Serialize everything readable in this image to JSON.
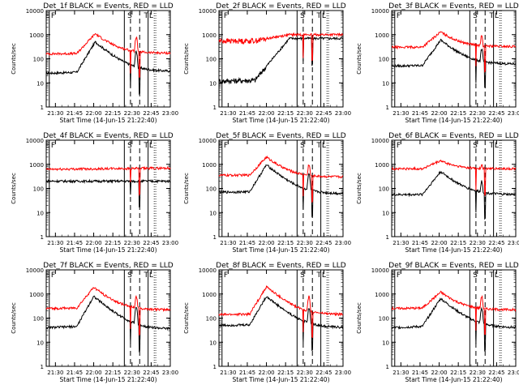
{
  "chart_data": [
    {
      "type": "line",
      "title": "Det_1f BLACK = Events, RED = LLD",
      "xlabel": "Start Time (14-Jun-15 21:22:40)",
      "ylabel": "Counts/sec",
      "ylim": [
        1,
        10000
      ],
      "yscale": "log",
      "xlim": [
        21.38,
        23.0
      ],
      "x_ticks": [
        "21:30",
        "21:45",
        "22:00",
        "22:15",
        "22:30",
        "22:45",
        "23:00"
      ],
      "y_ticks": [
        "1",
        "10",
        "100",
        "1000",
        "10000"
      ],
      "markers": {
        "labels": [
          "E",
          "F",
          "S",
          "T",
          "L"
        ],
        "solid": [
          21.42,
          22.4,
          22.71
        ],
        "dashed": [
          22.48,
          22.6
        ],
        "dotted": [
          22.79,
          22.81
        ]
      },
      "series": [
        {
          "name": "Events",
          "color": "#000000",
          "kind": "flare",
          "params": {
            "pre": [
              25,
              35
            ],
            "peak_t": 22.02,
            "peak": 500,
            "post": 30,
            "spike": 200
          }
        },
        {
          "name": "LLD",
          "color": "#ff0000",
          "kind": "flare",
          "params": {
            "pre": [
              160,
              180
            ],
            "peak_t": 22.02,
            "peak": 1100,
            "post": 170,
            "spike": 800
          }
        }
      ]
    },
    {
      "type": "line",
      "title": "Det_2f BLACK = Events, RED = LLD",
      "xlabel": "Start Time (14-Jun-15 21:22:40)",
      "ylabel": "Counts/sec",
      "ylim": [
        1,
        10000
      ],
      "yscale": "log",
      "xlim": [
        21.38,
        23.0
      ],
      "x_ticks": [
        "21:30",
        "21:45",
        "22:00",
        "22:15",
        "22:30",
        "22:45",
        "23:00"
      ],
      "y_ticks": [
        "1",
        "10",
        "100",
        "1000",
        "10000"
      ],
      "markers": {
        "labels": [
          "E",
          "F",
          "S",
          "T",
          "L"
        ],
        "solid": [
          21.42,
          22.4,
          22.71
        ],
        "dashed": [
          22.48,
          22.6
        ],
        "dotted": [
          22.79,
          22.81
        ]
      },
      "series": [
        {
          "name": "Events",
          "color": "#000000",
          "kind": "rise",
          "params": {
            "pre": [
              12,
              15
            ],
            "peak_t": 22.3,
            "peak": 700,
            "post": 20,
            "spike": 300
          }
        },
        {
          "name": "LLD",
          "color": "#ff0000",
          "kind": "rise",
          "params": {
            "pre": [
              550,
              600
            ],
            "peak_t": 22.3,
            "peak": 1000,
            "post": 300,
            "spike": 900
          }
        }
      ]
    },
    {
      "type": "line",
      "title": "Det_3f BLACK = Events, RED = LLD",
      "xlabel": "Start Time (14-Jun-15 21:22:40)",
      "ylabel": "Counts/sec",
      "ylim": [
        1,
        10000
      ],
      "yscale": "log",
      "xlim": [
        21.38,
        23.0
      ],
      "x_ticks": [
        "21:30",
        "21:45",
        "22:00",
        "22:15",
        "22:30",
        "22:45",
        "23:00"
      ],
      "y_ticks": [
        "1",
        "10",
        "100",
        "1000",
        "10000"
      ],
      "markers": {
        "labels": [
          "E",
          "F",
          "S",
          "T",
          "L"
        ],
        "solid": [
          21.42,
          22.4,
          22.71
        ],
        "dashed": [
          22.48,
          22.6
        ],
        "dotted": [
          22.79,
          22.81
        ]
      },
      "series": [
        {
          "name": "Events",
          "color": "#000000",
          "kind": "flare",
          "params": {
            "pre": [
              50,
              60
            ],
            "peak_t": 22.02,
            "peak": 600,
            "post": 60,
            "spike": 250
          }
        },
        {
          "name": "LLD",
          "color": "#ff0000",
          "kind": "flare",
          "params": {
            "pre": [
              300,
              320
            ],
            "peak_t": 22.02,
            "peak": 1300,
            "post": 320,
            "spike": 900
          }
        }
      ]
    },
    {
      "type": "line",
      "title": "Det_4f BLACK = Events, RED = LLD",
      "xlabel": "Start Time (14-Jun-15 21:22:40)",
      "ylabel": "Counts/sec",
      "ylim": [
        1,
        10000
      ],
      "yscale": "log",
      "xlim": [
        21.38,
        23.0
      ],
      "x_ticks": [
        "21:30",
        "21:45",
        "22:00",
        "22:15",
        "22:30",
        "22:45",
        "23:00"
      ],
      "y_ticks": [
        "1",
        "10",
        "100",
        "1000",
        "10000"
      ],
      "markers": {
        "labels": [
          "E",
          "F",
          "S",
          "T",
          "L"
        ],
        "solid": [
          21.42,
          22.4,
          22.71
        ],
        "dashed": [
          22.48,
          22.6
        ],
        "dotted": [
          22.79,
          22.81
        ]
      },
      "series": [
        {
          "name": "Events",
          "color": "#000000",
          "kind": "flat",
          "params": {
            "pre": [
              200,
              200
            ],
            "peak_t": 22.02,
            "peak": 200,
            "post": 200,
            "spike": 200
          }
        },
        {
          "name": "LLD",
          "color": "#ff0000",
          "kind": "flat",
          "params": {
            "pre": [
              620,
              700
            ],
            "peak_t": 22.02,
            "peak": 720,
            "post": 650,
            "spike": 700
          }
        }
      ]
    },
    {
      "type": "line",
      "title": "Det_5f BLACK = Events, RED = LLD",
      "xlabel": "Start Time (14-Jun-15 21:22:40)",
      "ylabel": "Counts/sec",
      "ylim": [
        1,
        10000
      ],
      "yscale": "log",
      "xlim": [
        21.38,
        23.0
      ],
      "x_ticks": [
        "21:30",
        "21:45",
        "22:00",
        "22:15",
        "22:30",
        "22:45",
        "23:00"
      ],
      "y_ticks": [
        "1",
        "10",
        "100",
        "1000",
        "10000"
      ],
      "markers": {
        "labels": [
          "E",
          "F",
          "S",
          "T",
          "L"
        ],
        "solid": [
          21.42,
          22.4,
          22.71
        ],
        "dashed": [
          22.48,
          22.6
        ],
        "dotted": [
          22.79,
          22.81
        ]
      },
      "series": [
        {
          "name": "Events",
          "color": "#000000",
          "kind": "flare",
          "params": {
            "pre": [
              70,
              80
            ],
            "peak_t": 22.0,
            "peak": 950,
            "post": 60,
            "spike": 400
          }
        },
        {
          "name": "LLD",
          "color": "#ff0000",
          "kind": "flare",
          "params": {
            "pre": [
              350,
              380
            ],
            "peak_t": 22.0,
            "peak": 2000,
            "post": 300,
            "spike": 1000
          }
        }
      ]
    },
    {
      "type": "line",
      "title": "Det_6f BLACK = Events, RED = LLD",
      "xlabel": "Start Time (14-Jun-15 21:22:40)",
      "ylabel": "Counts/sec",
      "ylim": [
        1,
        10000
      ],
      "yscale": "log",
      "xlim": [
        21.38,
        23.0
      ],
      "x_ticks": [
        "21:30",
        "21:45",
        "22:00",
        "22:15",
        "22:30",
        "22:45",
        "23:00"
      ],
      "y_ticks": [
        "1",
        "10",
        "100",
        "1000",
        "10000"
      ],
      "markers": {
        "labels": [
          "E",
          "F",
          "S",
          "T",
          "L"
        ],
        "solid": [
          21.42,
          22.4,
          22.71
        ],
        "dashed": [
          22.48,
          22.6
        ],
        "dotted": [
          22.79,
          22.81
        ]
      },
      "series": [
        {
          "name": "Events",
          "color": "#000000",
          "kind": "flare",
          "params": {
            "pre": [
              55,
              60
            ],
            "peak_t": 22.02,
            "peak": 500,
            "post": 55,
            "spike": 200
          }
        },
        {
          "name": "LLD",
          "color": "#ff0000",
          "kind": "flare",
          "params": {
            "pre": [
              650,
              680
            ],
            "peak_t": 22.02,
            "peak": 1400,
            "post": 650,
            "spike": 1000
          }
        }
      ]
    },
    {
      "type": "line",
      "title": "Det_7f BLACK = Events, RED = LLD",
      "xlabel": "Start Time (14-Jun-15 21:22:40)",
      "ylabel": "Counts/sec",
      "ylim": [
        1,
        10000
      ],
      "yscale": "log",
      "xlim": [
        21.38,
        23.0
      ],
      "x_ticks": [
        "21:30",
        "21:45",
        "22:00",
        "22:15",
        "22:30",
        "22:45",
        "23:00"
      ],
      "y_ticks": [
        "1",
        "10",
        "100",
        "1000",
        "10000"
      ],
      "markers": {
        "labels": [
          "E",
          "F",
          "S",
          "T",
          "L"
        ],
        "solid": [
          21.42,
          22.4,
          22.71
        ],
        "dashed": [
          22.48,
          22.6
        ],
        "dotted": [
          22.79,
          22.81
        ]
      },
      "series": [
        {
          "name": "Events",
          "color": "#000000",
          "kind": "flare",
          "params": {
            "pre": [
              40,
              60
            ],
            "peak_t": 22.0,
            "peak": 800,
            "post": 35,
            "spike": 300
          }
        },
        {
          "name": "LLD",
          "color": "#ff0000",
          "kind": "flare",
          "params": {
            "pre": [
              250,
              300
            ],
            "peak_t": 22.0,
            "peak": 1900,
            "post": 220,
            "spike": 800
          }
        }
      ]
    },
    {
      "type": "line",
      "title": "Det_8f BLACK = Events, RED = LLD",
      "xlabel": "Start Time (14-Jun-15 21:22:40)",
      "ylabel": "Counts/sec",
      "ylim": [
        1,
        10000
      ],
      "yscale": "log",
      "xlim": [
        21.38,
        23.0
      ],
      "x_ticks": [
        "21:30",
        "21:45",
        "22:00",
        "22:15",
        "22:30",
        "22:45",
        "23:00"
      ],
      "y_ticks": [
        "1",
        "10",
        "100",
        "1000",
        "10000"
      ],
      "markers": {
        "labels": [
          "E",
          "F",
          "S",
          "T",
          "L"
        ],
        "solid": [
          21.42,
          22.4,
          22.71
        ],
        "dashed": [
          22.48,
          22.6
        ],
        "dotted": [
          22.79,
          22.81
        ]
      },
      "series": [
        {
          "name": "Events",
          "color": "#000000",
          "kind": "flare",
          "params": {
            "pre": [
              50,
              60
            ],
            "peak_t": 22.0,
            "peak": 800,
            "post": 40,
            "spike": 250
          }
        },
        {
          "name": "LLD",
          "color": "#ff0000",
          "kind": "flare",
          "params": {
            "pre": [
              140,
              160
            ],
            "peak_t": 22.0,
            "peak": 2000,
            "post": 140,
            "spike": 800
          }
        }
      ]
    },
    {
      "type": "line",
      "title": "Det_9f BLACK = Events, RED = LLD",
      "xlabel": "Start Time (14-Jun-15 21:22:40)",
      "ylabel": "Counts/sec",
      "ylim": [
        1,
        10000
      ],
      "yscale": "log",
      "xlim": [
        21.38,
        23.0
      ],
      "x_ticks": [
        "21:30",
        "21:45",
        "22:00",
        "22:15",
        "22:30",
        "22:45",
        "23:00"
      ],
      "y_ticks": [
        "1",
        "10",
        "100",
        "1000",
        "10000"
      ],
      "markers": {
        "labels": [
          "E",
          "F",
          "S",
          "T",
          "L"
        ],
        "solid": [
          21.42,
          22.4,
          22.71
        ],
        "dashed": [
          22.48,
          22.6
        ],
        "dotted": [
          22.79,
          22.81
        ]
      },
      "series": [
        {
          "name": "Events",
          "color": "#000000",
          "kind": "flare",
          "params": {
            "pre": [
              40,
              60
            ],
            "peak_t": 22.02,
            "peak": 650,
            "post": 40,
            "spike": 250
          }
        },
        {
          "name": "LLD",
          "color": "#ff0000",
          "kind": "flare",
          "params": {
            "pre": [
              250,
              300
            ],
            "peak_t": 22.02,
            "peak": 1200,
            "post": 220,
            "spike": 800
          }
        }
      ]
    }
  ]
}
